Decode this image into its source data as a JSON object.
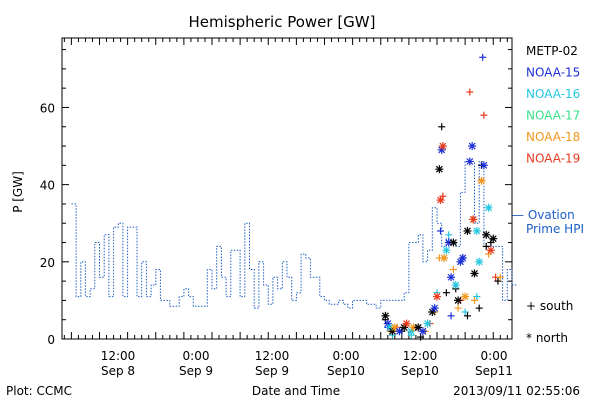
{
  "chart_data": {
    "type": "scatter",
    "title": "Hemispheric Power [GW]",
    "xlabel": "Date and Time",
    "ylabel": "P [GW]",
    "ylim": [
      0,
      78
    ],
    "xlim_hours_label_note": "",
    "y_ticks": [
      "0",
      "20",
      "40",
      "60"
    ],
    "x_ticks": [
      {
        "time": "12:00",
        "date": "Sep 8"
      },
      {
        "time": "0:00",
        "date": "Sep 9"
      },
      {
        "time": "12:00",
        "date": "Sep 9"
      },
      {
        "time": "0:00",
        "date": "Sep10"
      },
      {
        "time": "12:00",
        "date": "Sep10"
      },
      {
        "time": "0:00",
        "date": "Sep11"
      }
    ],
    "legend_satellites": [
      {
        "name": "METP-02",
        "color": "#000000"
      },
      {
        "name": "NOAA-15",
        "color": "#1c2fd6"
      },
      {
        "name": "NOAA-16",
        "color": "#26c6e0"
      },
      {
        "name": "NOAA-17",
        "color": "#38e08a"
      },
      {
        "name": "NOAA-18",
        "color": "#f2961c"
      },
      {
        "name": "NOAA-19",
        "color": "#e83a1e"
      }
    ],
    "legend_model": {
      "label_line1": "— Ovation",
      "label_line2": "Prime HPI",
      "color": "#1f5fc4"
    },
    "legend_markers": [
      {
        "symbol": "+",
        "label": "south"
      },
      {
        "symbol": "*",
        "label": "north"
      }
    ],
    "series": [
      {
        "name": "Ovation Prime HPI",
        "style": "dotted-step",
        "color": "#1f5fc4",
        "hours": [
          0,
          2,
          4,
          6,
          8,
          10,
          12,
          14,
          16,
          18,
          20,
          22,
          24,
          26,
          28,
          30,
          32,
          34,
          36,
          38,
          40,
          42,
          44,
          46,
          48,
          50,
          52,
          54,
          56,
          58,
          60,
          62,
          64,
          66,
          68,
          70,
          72,
          74,
          76,
          78,
          80,
          82,
          84,
          86,
          88,
          90,
          92,
          94,
          96,
          98,
          100,
          102,
          104,
          106,
          108,
          110,
          112,
          114,
          116,
          118,
          120,
          122,
          124,
          126,
          128,
          130,
          132,
          134,
          136,
          138,
          140,
          142,
          144,
          146,
          148,
          150,
          152,
          154,
          156,
          158,
          160,
          162,
          164,
          166,
          168,
          170,
          172,
          174,
          176,
          178,
          180,
          182,
          184,
          186,
          188
        ],
        "values": [
          35,
          11,
          20,
          11,
          13,
          25,
          16,
          27,
          11,
          29,
          30,
          11,
          29,
          29,
          11,
          20,
          11,
          14,
          18,
          10,
          10,
          8.5,
          8.5,
          11,
          13,
          11,
          8.5,
          8.5,
          8.5,
          18,
          13,
          24,
          16,
          11,
          23,
          23,
          11,
          30,
          18,
          8,
          20,
          14,
          9,
          16,
          13,
          20,
          16,
          10,
          12,
          22,
          21,
          16,
          16,
          11,
          10,
          9,
          9,
          10,
          9,
          8,
          10,
          10,
          10,
          9,
          9,
          8,
          10,
          10,
          10,
          10,
          10,
          12,
          25,
          25,
          27,
          20,
          23,
          34,
          30,
          24,
          26,
          25,
          24,
          38,
          46,
          46,
          30,
          46,
          24,
          24,
          24,
          24,
          10,
          18,
          14
        ]
      },
      {
        "name": "south",
        "marker": "+",
        "points": [
          {
            "h": 134,
            "v": 5,
            "c": "#000000"
          },
          {
            "h": 135,
            "v": 3,
            "c": "#1c2fd6"
          },
          {
            "h": 136,
            "v": 2,
            "c": "#f2961c"
          },
          {
            "h": 137,
            "v": 1,
            "c": "#26c6e0"
          },
          {
            "h": 139,
            "v": 3,
            "c": "#e83a1e"
          },
          {
            "h": 141,
            "v": 2,
            "c": "#000000"
          },
          {
            "h": 143,
            "v": 4,
            "c": "#f2961c"
          },
          {
            "h": 145,
            "v": 1,
            "c": "#26c6e0"
          },
          {
            "h": 147,
            "v": 3,
            "c": "#1c2fd6"
          },
          {
            "h": 149,
            "v": 0.5,
            "c": "#000000"
          },
          {
            "h": 151,
            "v": 2,
            "c": "#f2961c"
          },
          {
            "h": 153,
            "v": 4,
            "c": "#e83a1e"
          },
          {
            "h": 155,
            "v": 7,
            "c": "#f2961c"
          },
          {
            "h": 156,
            "v": 12,
            "c": "#26c6e0"
          },
          {
            "h": 157,
            "v": 21,
            "c": "#f2961c"
          },
          {
            "h": 157.5,
            "v": 28,
            "c": "#1c2fd6"
          },
          {
            "h": 158,
            "v": 55,
            "c": "#000000"
          },
          {
            "h": 158.5,
            "v": 37,
            "c": "#e83a1e"
          },
          {
            "h": 159,
            "v": 21,
            "c": "#38e08a"
          },
          {
            "h": 160,
            "v": 12,
            "c": "#000000"
          },
          {
            "h": 161,
            "v": 27,
            "c": "#26c6e0"
          },
          {
            "h": 162,
            "v": 6,
            "c": "#1c2fd6"
          },
          {
            "h": 163,
            "v": 18,
            "c": "#f2961c"
          },
          {
            "h": 164,
            "v": 13,
            "c": "#000000"
          },
          {
            "h": 165,
            "v": 8,
            "c": "#f2961c"
          },
          {
            "h": 166,
            "v": 10,
            "c": "#e83a1e"
          },
          {
            "h": 167,
            "v": 21,
            "c": "#1c2fd6"
          },
          {
            "h": 168,
            "v": 7,
            "c": "#26c6e0"
          },
          {
            "h": 169,
            "v": 6,
            "c": "#000000"
          },
          {
            "h": 170,
            "v": 64,
            "c": "#e83a1e"
          },
          {
            "h": 171,
            "v": 31,
            "c": "#f2961c"
          },
          {
            "h": 172,
            "v": 10,
            "c": "#f2961c"
          },
          {
            "h": 173,
            "v": 11,
            "c": "#26c6e0"
          },
          {
            "h": 174,
            "v": 8,
            "c": "#000000"
          },
          {
            "h": 175,
            "v": 45,
            "c": "#000000"
          },
          {
            "h": 175.5,
            "v": 73,
            "c": "#1c2fd6"
          },
          {
            "h": 176,
            "v": 58,
            "c": "#e83a1e"
          },
          {
            "h": 177,
            "v": 24,
            "c": "#000000"
          },
          {
            "h": 178,
            "v": 22,
            "c": "#f2961c"
          },
          {
            "h": 179,
            "v": 25,
            "c": "#000000"
          },
          {
            "h": 181,
            "v": 16,
            "c": "#e83a1e"
          },
          {
            "h": 182,
            "v": 15,
            "c": "#000000"
          },
          {
            "h": 183,
            "v": 16,
            "c": "#f2961c"
          }
        ]
      },
      {
        "name": "north",
        "marker": "*",
        "points": [
          {
            "h": 134,
            "v": 6,
            "c": "#000000"
          },
          {
            "h": 135,
            "v": 4,
            "c": "#1c2fd6"
          },
          {
            "h": 136,
            "v": 3,
            "c": "#26c6e0"
          },
          {
            "h": 137,
            "v": 2,
            "c": "#000000"
          },
          {
            "h": 138,
            "v": 3,
            "c": "#f2961c"
          },
          {
            "h": 140,
            "v": 2,
            "c": "#1c2fd6"
          },
          {
            "h": 142,
            "v": 3,
            "c": "#000000"
          },
          {
            "h": 143,
            "v": 4,
            "c": "#e83a1e"
          },
          {
            "h": 145,
            "v": 2,
            "c": "#26c6e0"
          },
          {
            "h": 146,
            "v": 3,
            "c": "#f2961c"
          },
          {
            "h": 148,
            "v": 3,
            "c": "#000000"
          },
          {
            "h": 150,
            "v": 2,
            "c": "#1c2fd6"
          },
          {
            "h": 152,
            "v": 4,
            "c": "#26c6e0"
          },
          {
            "h": 154,
            "v": 7,
            "c": "#000000"
          },
          {
            "h": 155,
            "v": 8,
            "c": "#1c2fd6"
          },
          {
            "h": 156,
            "v": 11,
            "c": "#e83a1e"
          },
          {
            "h": 157,
            "v": 44,
            "c": "#000000"
          },
          {
            "h": 157.5,
            "v": 36,
            "c": "#e83a1e"
          },
          {
            "h": 158,
            "v": 49,
            "c": "#1c2fd6"
          },
          {
            "h": 158.5,
            "v": 50,
            "c": "#e83a1e"
          },
          {
            "h": 159,
            "v": 21,
            "c": "#f2961c"
          },
          {
            "h": 160,
            "v": 23,
            "c": "#26c6e0"
          },
          {
            "h": 161,
            "v": 25,
            "c": "#1c2fd6"
          },
          {
            "h": 162,
            "v": 16,
            "c": "#1c2fd6"
          },
          {
            "h": 163,
            "v": 25,
            "c": "#000000"
          },
          {
            "h": 164,
            "v": 14,
            "c": "#26c6e0"
          },
          {
            "h": 165,
            "v": 10,
            "c": "#000000"
          },
          {
            "h": 166,
            "v": 20,
            "c": "#1c2fd6"
          },
          {
            "h": 167,
            "v": 21,
            "c": "#1c2fd6"
          },
          {
            "h": 168,
            "v": 11,
            "c": "#f2961c"
          },
          {
            "h": 169,
            "v": 28,
            "c": "#000000"
          },
          {
            "h": 170,
            "v": 46,
            "c": "#1c2fd6"
          },
          {
            "h": 171,
            "v": 50,
            "c": "#1c2fd6"
          },
          {
            "h": 171.5,
            "v": 31,
            "c": "#e83a1e"
          },
          {
            "h": 172,
            "v": 17,
            "c": "#000000"
          },
          {
            "h": 173,
            "v": 28,
            "c": "#26c6e0"
          },
          {
            "h": 174,
            "v": 20,
            "c": "#26c6e0"
          },
          {
            "h": 175,
            "v": 41,
            "c": "#f2961c"
          },
          {
            "h": 176,
            "v": 45,
            "c": "#1c2fd6"
          },
          {
            "h": 177,
            "v": 27,
            "c": "#000000"
          },
          {
            "h": 178,
            "v": 34,
            "c": "#26c6e0"
          },
          {
            "h": 179,
            "v": 23,
            "c": "#e83a1e"
          },
          {
            "h": 180,
            "v": 26,
            "c": "#000000"
          }
        ]
      }
    ],
    "grid": false,
    "legend_position": "right"
  },
  "footer": {
    "plot_label": "Plot: CCMC",
    "timestamp": "2013/09/11 02:55:06"
  }
}
